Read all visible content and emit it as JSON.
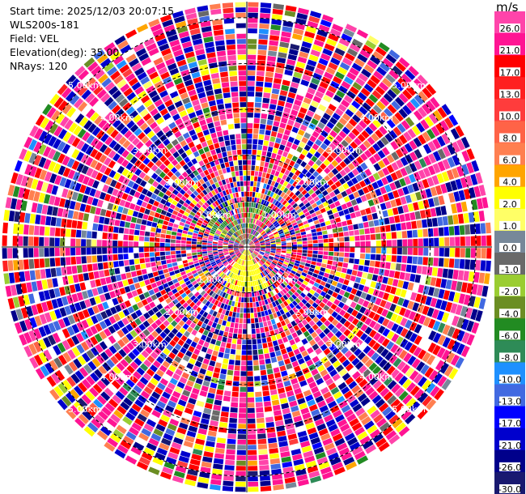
{
  "info": {
    "start_time": "Start time: 2025/12/03 20:07:15",
    "instrument": "WLS200s-181",
    "field": "Field: VEL",
    "elevation": "Elevation(deg): 35.00",
    "nrays": "NRays: 120"
  },
  "chart_data": {
    "type": "ppi",
    "field": "VEL",
    "units": "m/s",
    "range_rings_km": [
      1.0,
      2.0,
      3.0,
      4.0,
      5.0
    ],
    "ring_label_suffix": "km",
    "ring_label_format": "0.00",
    "nrays": 120,
    "colorbar": {
      "label": "m/s",
      "ticks": [
        "26.0",
        "21.0",
        "17.0",
        "13.0",
        "10.0",
        "8.0",
        "6.0",
        "4.0",
        "2.0",
        "1.0",
        "0.0",
        "-1.0",
        "-2.0",
        "-4.0",
        "-6.0",
        "-8.0",
        "-10.0",
        "-13.0",
        "-17.0",
        "-21.0",
        "-26.0",
        "-30.0"
      ],
      "bins": [
        {
          "lo": 26,
          "hi": 30,
          "color": "#ff44aa"
        },
        {
          "lo": 21,
          "hi": 26,
          "color": "#ff1493"
        },
        {
          "lo": 17,
          "hi": 21,
          "color": "#ff0000"
        },
        {
          "lo": 13,
          "hi": 17,
          "color": "#ff2020"
        },
        {
          "lo": 10,
          "hi": 13,
          "color": "#ff3c3c"
        },
        {
          "lo": 8,
          "hi": 10,
          "color": "#ff6347"
        },
        {
          "lo": 6,
          "hi": 8,
          "color": "#ff7f50"
        },
        {
          "lo": 4,
          "hi": 6,
          "color": "#ffa500"
        },
        {
          "lo": 2,
          "hi": 4,
          "color": "#ffff00"
        },
        {
          "lo": 1,
          "hi": 2,
          "color": "#ffff66"
        },
        {
          "lo": 0,
          "hi": 1,
          "color": "#778899"
        },
        {
          "lo": -1,
          "hi": 0,
          "color": "#696969"
        },
        {
          "lo": -2,
          "hi": -1,
          "color": "#9acd32"
        },
        {
          "lo": -4,
          "hi": -2,
          "color": "#6b8e23"
        },
        {
          "lo": -6,
          "hi": -4,
          "color": "#228b22"
        },
        {
          "lo": -8,
          "hi": -6,
          "color": "#2e8b57"
        },
        {
          "lo": -10,
          "hi": -8,
          "color": "#1e90ff"
        },
        {
          "lo": -13,
          "hi": -10,
          "color": "#4169e1"
        },
        {
          "lo": -17,
          "hi": -13,
          "color": "#0000ff"
        },
        {
          "lo": -21,
          "hi": -17,
          "color": "#0000cd"
        },
        {
          "lo": -26,
          "hi": -21,
          "color": "#00008b"
        },
        {
          "lo": -30,
          "hi": -26,
          "color": "#191970"
        }
      ]
    }
  }
}
